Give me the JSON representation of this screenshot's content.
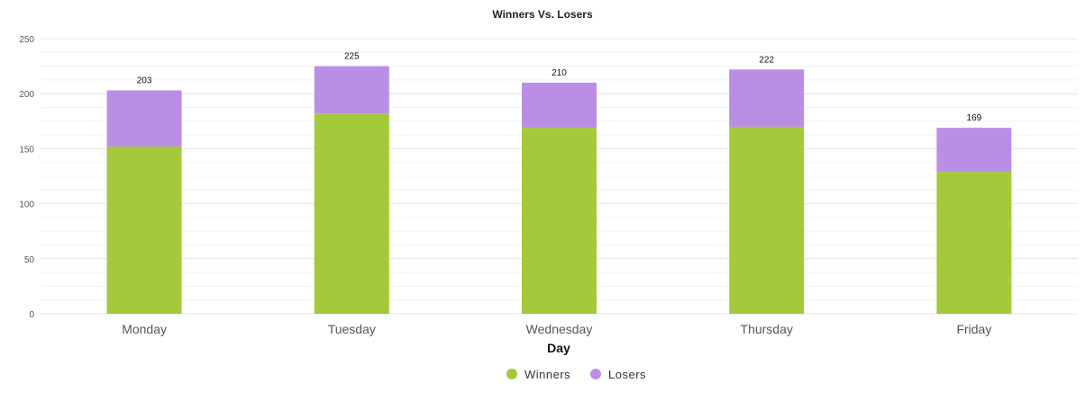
{
  "chart_data": {
    "type": "bar",
    "stacked": true,
    "title": "Winners Vs. Losers",
    "xlabel": "Day",
    "ylabel": "",
    "ylim": [
      0,
      250
    ],
    "yticks": [
      0,
      50,
      100,
      150,
      200,
      250
    ],
    "categories": [
      "Monday",
      "Tuesday",
      "Wednesday",
      "Thursday",
      "Friday"
    ],
    "series": [
      {
        "name": "Winners",
        "color": "#a4c93a",
        "values": [
          152,
          182,
          169,
          170,
          129
        ]
      },
      {
        "name": "Losers",
        "color": "#bb8ee6",
        "values": [
          51,
          43,
          41,
          52,
          40
        ]
      }
    ],
    "totals": [
      203,
      225,
      210,
      222,
      169
    ],
    "grid": true,
    "legend_position": "bottom-center"
  }
}
